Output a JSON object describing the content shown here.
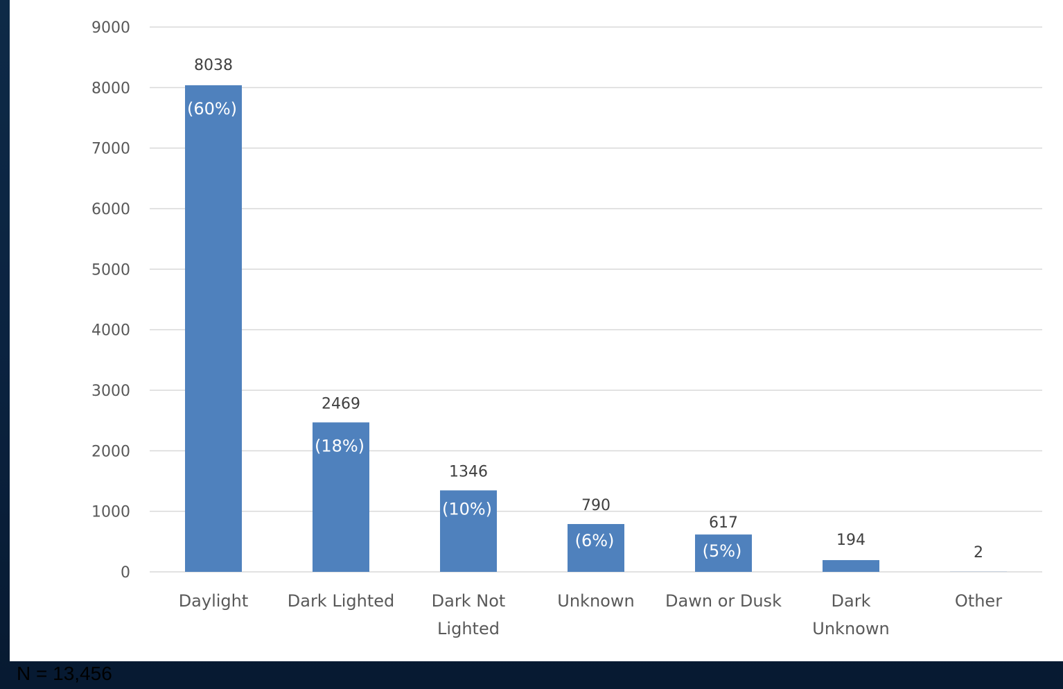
{
  "chart_data": {
    "type": "bar",
    "categories": [
      "Daylight",
      "Dark Lighted",
      "Dark Not Lighted",
      "Unknown",
      "Dawn or Dusk",
      "Dark Unknown",
      "Other"
    ],
    "category_lines": [
      [
        "Daylight"
      ],
      [
        "Dark Lighted"
      ],
      [
        "Dark Not",
        "Lighted"
      ],
      [
        "Unknown"
      ],
      [
        "Dawn or Dusk"
      ],
      [
        "Dark",
        "Unknown"
      ],
      [
        "Other"
      ]
    ],
    "values": [
      8038,
      2469,
      1346,
      790,
      617,
      194,
      2
    ],
    "value_labels": [
      "8038",
      "2469",
      "1346",
      "790",
      "617",
      "194",
      "2"
    ],
    "percent_labels": [
      "(60%)",
      "(18%)",
      "(10%)",
      "(6%)",
      "(5%)",
      "",
      ""
    ],
    "yticks": [
      0,
      1000,
      2000,
      3000,
      4000,
      5000,
      6000,
      7000,
      8000,
      9000
    ],
    "ylim": [
      0,
      9000
    ],
    "grid": true,
    "bar_color": "#4f81bd",
    "title": "",
    "xlabel": "",
    "ylabel": ""
  },
  "footnote": "N = 13,456"
}
